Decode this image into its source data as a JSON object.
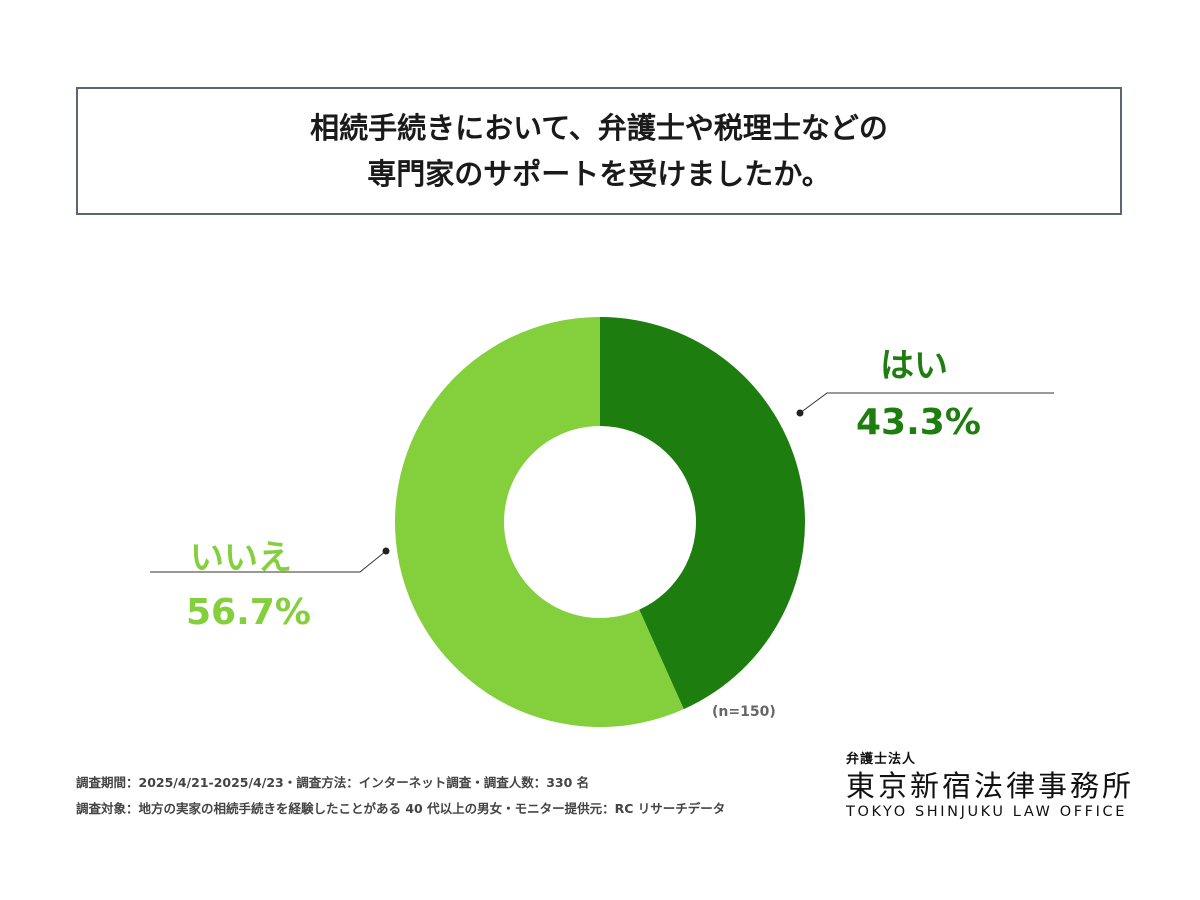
{
  "title": {
    "line1": "相続手続きにおいて、弁護士や税理士などの",
    "line2": "専門家のサポートを受けましたか。"
  },
  "chart_data": {
    "type": "pie",
    "donut": true,
    "categories": [
      "はい",
      "いいえ"
    ],
    "values": [
      43.3,
      56.7
    ],
    "value_labels": [
      "43.3%",
      "56.7%"
    ],
    "colors": [
      "#1e7d0f",
      "#84cf3c"
    ],
    "note": "(n=150)"
  },
  "footer": {
    "line1": "調査期間：2025/4/21-2025/4/23・調査方法：インターネット調査・調査人数：330 名",
    "line2": "調査対象：地方の実家の相続手続きを経験したことがある 40 代以上の男女・モニター提供元：RC リサーチデータ"
  },
  "logo": {
    "sub": "弁護士法人",
    "main": "東京新宿法律事務所",
    "en": "TOKYO SHINJUKU LAW OFFICE"
  }
}
